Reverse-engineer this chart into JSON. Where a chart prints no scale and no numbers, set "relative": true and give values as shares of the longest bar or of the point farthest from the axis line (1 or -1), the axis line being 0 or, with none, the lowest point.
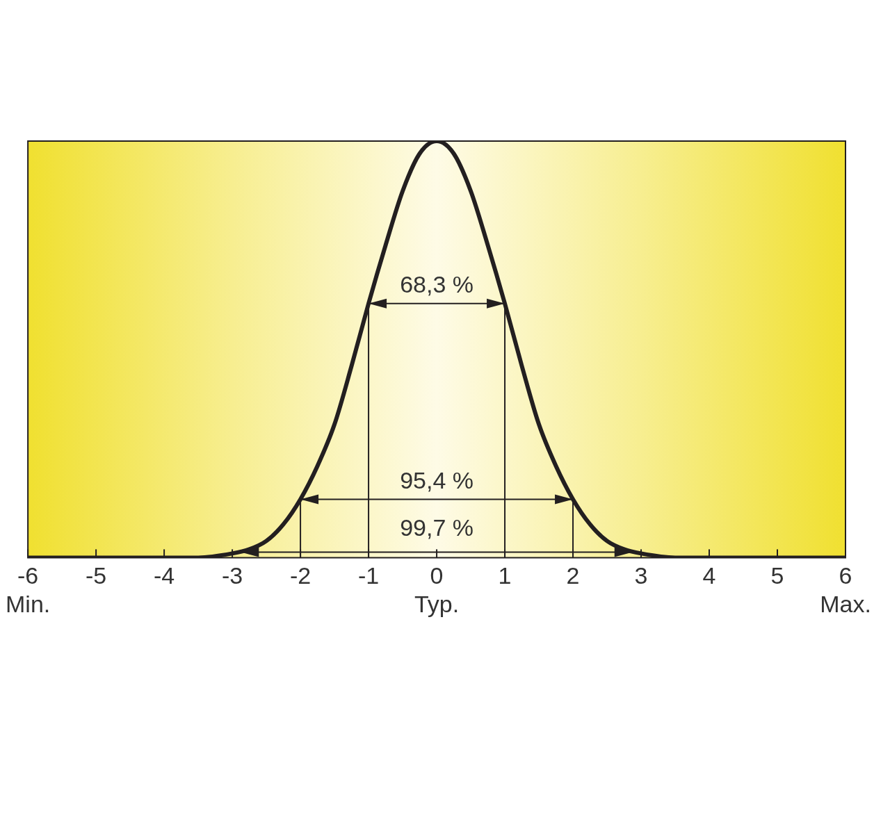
{
  "chart_data": {
    "type": "line",
    "relative": true,
    "color": "#231f20",
    "marker": "none",
    "x": [
      -6,
      -5,
      -4,
      -3.5,
      -3,
      -2.75,
      -2.5,
      -2.25,
      -2,
      -1.75,
      -1.5,
      -1.25,
      -1,
      -0.75,
      -0.5,
      -0.25,
      0,
      0.25,
      0.5,
      0.75,
      1,
      1.25,
      1.5,
      1.75,
      2,
      2.25,
      2.5,
      2.75,
      3,
      3.5,
      4,
      5,
      6
    ],
    "values": [
      0,
      0,
      0,
      0,
      0.01,
      0.02,
      0.04,
      0.08,
      0.14,
      0.22,
      0.32,
      0.46,
      0.61,
      0.75,
      0.88,
      0.97,
      1,
      0.97,
      0.88,
      0.75,
      0.61,
      0.46,
      0.32,
      0.22,
      0.14,
      0.08,
      0.04,
      0.02,
      0.01,
      0,
      0,
      0,
      0
    ],
    "xlim": [
      -6,
      6
    ],
    "xticks": [
      {
        "value": -6,
        "label": "-6\nMin."
      },
      -5,
      -4,
      -3,
      -2,
      -1,
      {
        "value": 0,
        "label": "0\nTyp."
      },
      1,
      2,
      3,
      4,
      5,
      {
        "value": 6,
        "label": "6\nMax."
      }
    ],
    "ref_lines": [
      {
        "axis": "x",
        "value": -2
      },
      {
        "axis": "x",
        "value": -1
      },
      {
        "axis": "x",
        "value": 1
      },
      {
        "axis": "x",
        "value": 2
      }
    ],
    "annotations": [
      "68,3 %",
      "95,4 %",
      "99,7 %"
    ]
  }
}
